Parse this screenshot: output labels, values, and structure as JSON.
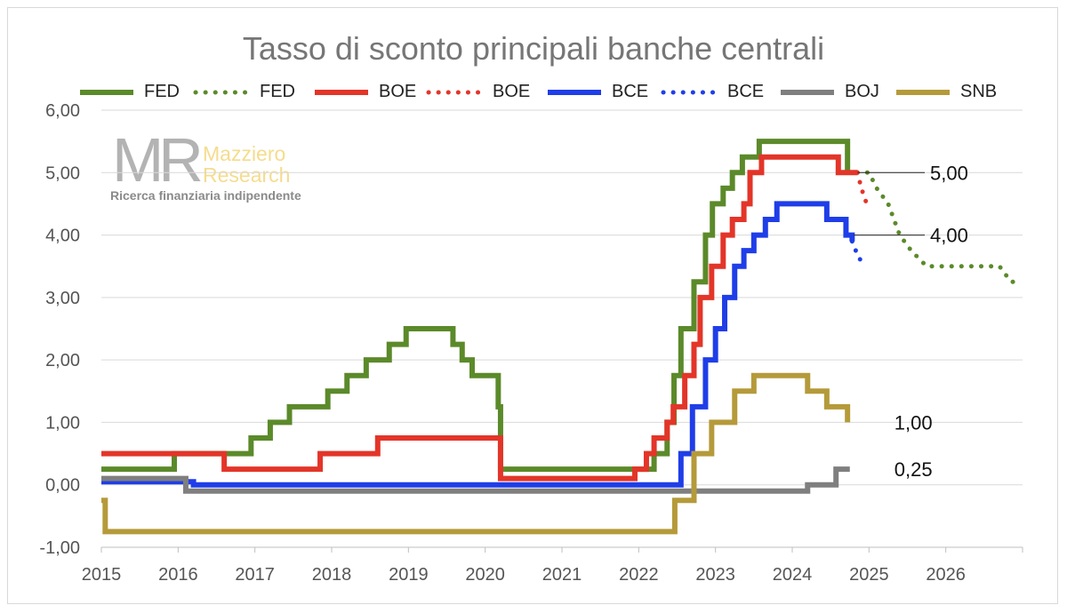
{
  "chart_data": {
    "type": "line",
    "title": "Tasso di sconto principali banche centrali",
    "xlabel": "",
    "ylabel": "",
    "xlim": [
      2015,
      2027
    ],
    "ylim": [
      -1,
      6
    ],
    "x_ticks": [
      "2015",
      "2016",
      "2017",
      "2018",
      "2019",
      "2020",
      "2021",
      "2022",
      "2023",
      "2024",
      "2025",
      "2026"
    ],
    "y_ticks": [
      "-1,00",
      "0,00",
      "1,00",
      "2,00",
      "3,00",
      "4,00",
      "5,00",
      "6,00"
    ],
    "grid": "horizontal",
    "legend_position": "top",
    "series": [
      {
        "name": "FED",
        "style": "solid",
        "color": "#5b8a2a",
        "step": true,
        "points": [
          [
            2015.0,
            0.25
          ],
          [
            2015.95,
            0.5
          ],
          [
            2016.95,
            0.75
          ],
          [
            2017.2,
            1.0
          ],
          [
            2017.45,
            1.25
          ],
          [
            2017.95,
            1.5
          ],
          [
            2018.2,
            1.75
          ],
          [
            2018.45,
            2.0
          ],
          [
            2018.75,
            2.25
          ],
          [
            2018.97,
            2.5
          ],
          [
            2019.58,
            2.25
          ],
          [
            2019.7,
            2.0
          ],
          [
            2019.83,
            1.75
          ],
          [
            2020.17,
            1.25
          ],
          [
            2020.2,
            0.25
          ],
          [
            2022.2,
            0.5
          ],
          [
            2022.37,
            1.0
          ],
          [
            2022.46,
            1.75
          ],
          [
            2022.55,
            2.5
          ],
          [
            2022.72,
            3.25
          ],
          [
            2022.87,
            4.0
          ],
          [
            2022.96,
            4.5
          ],
          [
            2023.1,
            4.75
          ],
          [
            2023.22,
            5.0
          ],
          [
            2023.35,
            5.25
          ],
          [
            2023.57,
            5.5
          ],
          [
            2024.72,
            5.0
          ]
        ]
      },
      {
        "name": "FED",
        "style": "dotted",
        "color": "#5b8a2a",
        "points": [
          [
            2024.72,
            5.0
          ],
          [
            2025.0,
            5.0
          ],
          [
            2025.1,
            4.75
          ],
          [
            2025.25,
            4.5
          ],
          [
            2025.4,
            4.0
          ],
          [
            2025.55,
            3.75
          ],
          [
            2025.75,
            3.5
          ],
          [
            2026.7,
            3.5
          ],
          [
            2026.85,
            3.25
          ],
          [
            2027.0,
            3.25
          ]
        ]
      },
      {
        "name": "BOE",
        "style": "solid",
        "color": "#e33529",
        "step": true,
        "points": [
          [
            2015.0,
            0.5
          ],
          [
            2016.6,
            0.25
          ],
          [
            2017.85,
            0.5
          ],
          [
            2018.6,
            0.75
          ],
          [
            2020.2,
            0.1
          ],
          [
            2021.95,
            0.25
          ],
          [
            2022.1,
            0.5
          ],
          [
            2022.2,
            0.75
          ],
          [
            2022.37,
            1.0
          ],
          [
            2022.45,
            1.25
          ],
          [
            2022.6,
            1.75
          ],
          [
            2022.72,
            2.25
          ],
          [
            2022.8,
            3.0
          ],
          [
            2022.95,
            3.5
          ],
          [
            2023.1,
            4.0
          ],
          [
            2023.22,
            4.25
          ],
          [
            2023.37,
            4.5
          ],
          [
            2023.45,
            5.0
          ],
          [
            2023.6,
            5.25
          ],
          [
            2024.6,
            5.0
          ],
          [
            2024.85,
            5.0
          ]
        ]
      },
      {
        "name": "BOE",
        "style": "dotted",
        "color": "#e33529",
        "points": [
          [
            2024.85,
            5.0
          ],
          [
            2024.9,
            4.75
          ],
          [
            2024.97,
            4.5
          ]
        ]
      },
      {
        "name": "BCE",
        "style": "solid",
        "color": "#1f3ee8",
        "step": true,
        "points": [
          [
            2015.0,
            0.05
          ],
          [
            2016.2,
            0.0
          ],
          [
            2022.55,
            0.5
          ],
          [
            2022.7,
            1.25
          ],
          [
            2022.87,
            2.0
          ],
          [
            2023.0,
            2.5
          ],
          [
            2023.12,
            3.0
          ],
          [
            2023.25,
            3.5
          ],
          [
            2023.37,
            3.75
          ],
          [
            2023.5,
            4.0
          ],
          [
            2023.65,
            4.25
          ],
          [
            2023.8,
            4.5
          ],
          [
            2024.45,
            4.25
          ],
          [
            2024.7,
            4.0
          ],
          [
            2024.78,
            3.9
          ]
        ]
      },
      {
        "name": "BCE",
        "style": "dotted",
        "color": "#1f3ee8",
        "points": [
          [
            2024.78,
            3.9
          ],
          [
            2024.86,
            3.65
          ],
          [
            2024.95,
            3.5
          ]
        ]
      },
      {
        "name": "BOJ",
        "style": "solid",
        "color": "#7f7f7f",
        "step": true,
        "points": [
          [
            2015.0,
            0.1
          ],
          [
            2016.1,
            -0.1
          ],
          [
            2024.2,
            0.0
          ],
          [
            2024.57,
            0.25
          ],
          [
            2024.75,
            0.25
          ]
        ]
      },
      {
        "name": "SNB",
        "style": "solid",
        "color": "#b59a3a",
        "step": true,
        "points": [
          [
            2015.0,
            -0.25
          ],
          [
            2015.05,
            -0.75
          ],
          [
            2022.47,
            -0.25
          ],
          [
            2022.72,
            0.5
          ],
          [
            2022.95,
            1.0
          ],
          [
            2023.25,
            1.5
          ],
          [
            2023.5,
            1.75
          ],
          [
            2024.2,
            1.5
          ],
          [
            2024.45,
            1.25
          ],
          [
            2024.72,
            1.0
          ]
        ]
      }
    ],
    "annotations": [
      {
        "text": "5,00",
        "x": 2024.85,
        "y": 5.0
      },
      {
        "text": "4,00",
        "x": 2024.8,
        "y": 4.0
      },
      {
        "text": "1,00",
        "x": 2024.75,
        "y": 1.0
      },
      {
        "text": "0,25",
        "x": 2024.75,
        "y": 0.25
      }
    ]
  },
  "legend": [
    {
      "label": "FED",
      "color": "#5b8a2a",
      "style": "solid"
    },
    {
      "label": "FED",
      "color": "#5b8a2a",
      "style": "dotted"
    },
    {
      "label": "BOE",
      "color": "#e33529",
      "style": "solid"
    },
    {
      "label": "BOE",
      "color": "#e33529",
      "style": "dotted"
    },
    {
      "label": "BCE",
      "color": "#1f3ee8",
      "style": "solid"
    },
    {
      "label": "BCE",
      "color": "#1f3ee8",
      "style": "dotted"
    },
    {
      "label": "BOJ",
      "color": "#7f7f7f",
      "style": "solid"
    },
    {
      "label": "SNB",
      "color": "#b59a3a",
      "style": "solid"
    }
  ],
  "logo": {
    "letters": "MR",
    "name_line1": "Mazziero",
    "name_line2": "Research",
    "tagline": "Ricerca finanziaria indipendente"
  }
}
